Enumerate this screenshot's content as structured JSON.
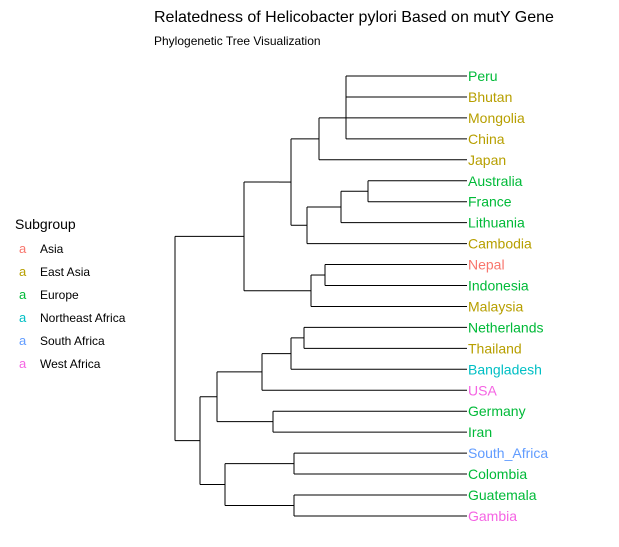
{
  "title": "Relatedness of Helicobacter pylori Based on mutY Gene",
  "subtitle": "Phylogenetic Tree Visualization",
  "legend": {
    "title": "Subgroup",
    "key_glyph": "a",
    "items": [
      {
        "label": "Asia",
        "color": "#F8766D"
      },
      {
        "label": "East Asia",
        "color": "#B79F00"
      },
      {
        "label": "Europe",
        "color": "#00BA38"
      },
      {
        "label": "Northeast Africa",
        "color": "#00BFC4"
      },
      {
        "label": "South Africa",
        "color": "#619CFF"
      },
      {
        "label": "West Africa",
        "color": "#F564E3"
      }
    ]
  },
  "tips": [
    {
      "label": "Peru",
      "subgroup": "Europe"
    },
    {
      "label": "Bhutan",
      "subgroup": "East Asia"
    },
    {
      "label": "Mongolia",
      "subgroup": "East Asia"
    },
    {
      "label": "China",
      "subgroup": "East Asia"
    },
    {
      "label": "Japan",
      "subgroup": "East Asia"
    },
    {
      "label": "Australia",
      "subgroup": "Europe"
    },
    {
      "label": "France",
      "subgroup": "Europe"
    },
    {
      "label": "Lithuania",
      "subgroup": "Europe"
    },
    {
      "label": "Cambodia",
      "subgroup": "East Asia"
    },
    {
      "label": "Nepal",
      "subgroup": "Asia"
    },
    {
      "label": "Indonesia",
      "subgroup": "Europe"
    },
    {
      "label": "Malaysia",
      "subgroup": "East Asia"
    },
    {
      "label": "Netherlands",
      "subgroup": "Europe"
    },
    {
      "label": "Thailand",
      "subgroup": "East Asia"
    },
    {
      "label": "Bangladesh",
      "subgroup": "Northeast Africa"
    },
    {
      "label": "USA",
      "subgroup": "West Africa"
    },
    {
      "label": "Germany",
      "subgroup": "Europe"
    },
    {
      "label": "Iran",
      "subgroup": "Europe"
    },
    {
      "label": "South_Africa",
      "subgroup": "South Africa"
    },
    {
      "label": "Colombia",
      "subgroup": "Europe"
    },
    {
      "label": "Guatemala",
      "subgroup": "Europe"
    },
    {
      "label": "Gambia",
      "subgroup": "West Africa"
    }
  ],
  "tree": [
    "root",
    [
      [
        "n_top",
        [
          [
            "n_a",
            [
              [
                "n_a1",
                [
                  [
                    "n_a2",
                    [
                      [
                        "n_a3",
                        [
                          [
                            "n_pb",
                            [
                              "Peru",
                              "Bhutan",
                              "Mongolia"
                            ]
                          ],
                          "China"
                        ]
                      ],
                      "Japan"
                    ]
                  ],
                  [
                    "n_b",
                    [
                      [
                        "n_b1",
                        [
                          [
                            "n_af",
                            [
                              "Australia",
                              "France"
                            ]
                          ],
                          "Lithuania"
                        ]
                      ],
                      "Cambodia"
                    ]
                  ]
                ]
              ]
            ]
          ],
          [
            "n_c",
            [
              [
                "n_ni",
                [
                  "Nepal",
                  "Indonesia"
                ]
              ],
              "Malaysia"
            ]
          ]
        ]
      ],
      [
        "n_bot",
        [
          [
            "n_d",
            [
              [
                "n_d1",
                [
                  [
                    "n_d2",
                    [
                      [
                        "n_nt",
                        [
                          "Netherlands",
                          "Thailand"
                        ]
                      ],
                      "Bangladesh"
                    ]
                  ],
                  "USA"
                ]
              ],
              [
                "n_gi",
                [
                  "Germany",
                  "Iran"
                ]
              ]
            ]
          ],
          [
            "n_e",
            [
              [
                "n_sc",
                [
                  "South_Africa",
                  "Colombia"
                ]
              ],
              [
                "n_gg",
                [
                  "Guatemala",
                  "Gambia"
                ]
              ]
            ]
          ]
        ]
      ]
    ]
  ]
}
